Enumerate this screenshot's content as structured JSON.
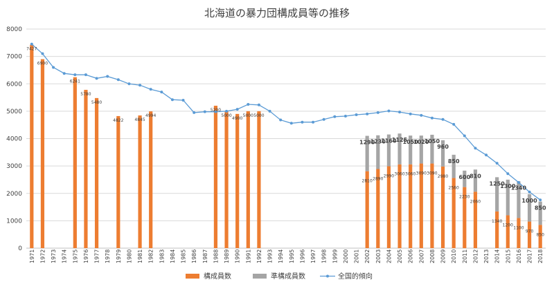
{
  "chart_data": {
    "type": "bar",
    "title": "北海道の暴力団構成員等の推移",
    "ylim": [
      0,
      8000
    ],
    "y_ticks": [
      0,
      1000,
      2000,
      3000,
      4000,
      5000,
      6000,
      7000,
      8000
    ],
    "grid": true,
    "legend_position": "bottom",
    "categories": [
      "1971",
      "1972",
      "1973",
      "1974",
      "1975",
      "1976",
      "1977",
      "1978",
      "1979",
      "1980",
      "1981",
      "1982",
      "1983",
      "1984",
      "1985",
      "1986",
      "1987",
      "1988",
      "1989",
      "1990",
      "1991",
      "1992",
      "1993",
      "1994",
      "1995",
      "1996",
      "1997",
      "1998",
      "1999",
      "2000",
      "2001",
      "2002",
      "2003",
      "2004",
      "2005",
      "2006",
      "2007",
      "2008",
      "2009",
      "2010",
      "2011",
      "2012",
      "2013",
      "2014",
      "2015",
      "2016",
      "2017",
      "2018"
    ],
    "series": [
      {
        "name": "構成員数",
        "type": "bar-stacked",
        "color": "#ed7d31",
        "values": [
          7427,
          6900,
          null,
          null,
          6241,
          5780,
          5480,
          null,
          4822,
          null,
          4845,
          4994,
          null,
          null,
          null,
          null,
          null,
          5200,
          5000,
          4900,
          5000,
          5000,
          null,
          null,
          null,
          null,
          null,
          null,
          null,
          null,
          null,
          2810,
          2890,
          2990,
          3060,
          3060,
          3090,
          3090,
          2980,
          2560,
          2230,
          2060,
          null,
          1340,
          1200,
          1100,
          970,
          850
        ],
        "labels": [
          "7427",
          "6900",
          "",
          "",
          "6241",
          "5780",
          "5480",
          "",
          "4822",
          "",
          "4845",
          "4994",
          "",
          "",
          "",
          "",
          "",
          "5200",
          "5000",
          "4900",
          "5000",
          "5000",
          "",
          "",
          "",
          "",
          "",
          "",
          "",
          "",
          "",
          "2810",
          "2890",
          "2990",
          "3060",
          "3060",
          "3090",
          "3090",
          "2980",
          "2560",
          "2230",
          "2060",
          "",
          "1340",
          "1200",
          "1100",
          "970",
          "850"
        ]
      },
      {
        "name": "準構成員数",
        "type": "bar-stacked",
        "color": "#a5a5a5",
        "values": [
          null,
          null,
          null,
          null,
          null,
          null,
          null,
          null,
          null,
          null,
          null,
          null,
          null,
          null,
          null,
          null,
          null,
          null,
          null,
          null,
          null,
          null,
          null,
          null,
          null,
          null,
          null,
          null,
          null,
          null,
          null,
          1290,
          1230,
          1160,
          1125,
          1050,
          1020,
          1050,
          960,
          850,
          600,
          810,
          null,
          1250,
          1300,
          1340,
          1000,
          850
        ],
        "labels": [
          "",
          "",
          "",
          "",
          "",
          "",
          "",
          "",
          "",
          "",
          "",
          "",
          "",
          "",
          "",
          "",
          "",
          "",
          "",
          "",
          "",
          "",
          "",
          "",
          "",
          "",
          "",
          "",
          "",
          "",
          "",
          "1290",
          "1230",
          "1160",
          "1125",
          "1050",
          "1020",
          "1050",
          "960",
          "850",
          "600",
          "810",
          "",
          "1250",
          "1300",
          "1340",
          "1000",
          "850"
        ]
      },
      {
        "name": "全国的傾向",
        "type": "line",
        "color": "#5b9bd5",
        "values": [
          7450,
          7100,
          6600,
          6380,
          6330,
          6330,
          6200,
          6270,
          6150,
          6000,
          5950,
          5800,
          5700,
          5420,
          5400,
          4950,
          4980,
          4980,
          5000,
          5070,
          5250,
          5230,
          5000,
          4680,
          4560,
          4600,
          4600,
          4700,
          4800,
          4820,
          4870,
          4900,
          4950,
          5010,
          4970,
          4900,
          4850,
          4750,
          4700,
          4520,
          4100,
          3650,
          3400,
          3100,
          2720,
          2400,
          2050,
          1760
        ]
      }
    ]
  }
}
